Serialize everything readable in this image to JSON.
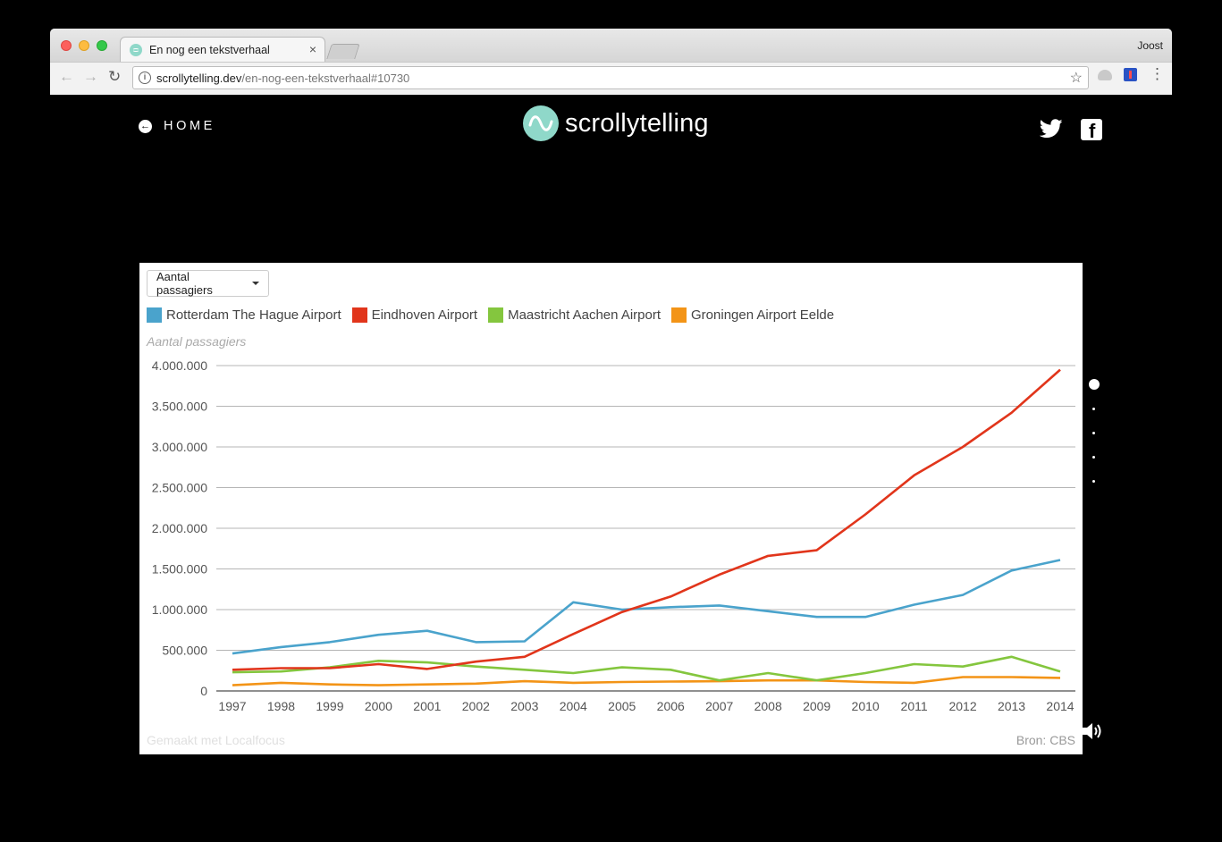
{
  "browser": {
    "tab_title": "En nog een tekstverhaal",
    "tab_close": "×",
    "user": "Joost",
    "url_host": "scrollytelling.dev",
    "url_path": "/en-nog-een-tekstverhaal#10730",
    "info_glyph": "i"
  },
  "header": {
    "home_label": "HOME",
    "logo_text": "scrollytelling"
  },
  "chart_panel": {
    "dropdown_label": "Aantal passagiers",
    "footer_left": "Gemaakt met Localfocus",
    "footer_right": "Bron: CBS"
  },
  "chart_data": {
    "type": "line",
    "ylabel": "Aantal passagiers",
    "ylim": [
      0,
      4000000
    ],
    "yticks": [
      0,
      500000,
      1000000,
      1500000,
      2000000,
      2500000,
      3000000,
      3500000,
      4000000
    ],
    "ytick_labels": [
      "0",
      "500.000",
      "1.000.000",
      "1.500.000",
      "2.000.000",
      "2.500.000",
      "3.000.000",
      "3.500.000",
      "4.000.000"
    ],
    "x": [
      "1997",
      "1998",
      "1999",
      "2000",
      "2001",
      "2002",
      "2003",
      "2004",
      "2005",
      "2006",
      "2007",
      "2008",
      "2009",
      "2010",
      "2011",
      "2012",
      "2013",
      "2014"
    ],
    "legend_position": "top-left",
    "grid": true,
    "series": [
      {
        "name": "Rotterdam The Hague Airport",
        "color": "#4aa3cc",
        "values": [
          460000,
          540000,
          600000,
          690000,
          740000,
          600000,
          610000,
          1090000,
          1000000,
          1030000,
          1050000,
          980000,
          910000,
          910000,
          1060000,
          1180000,
          1480000,
          1610000
        ]
      },
      {
        "name": "Eindhoven Airport",
        "color": "#e1351b",
        "values": [
          260000,
          280000,
          280000,
          330000,
          270000,
          360000,
          420000,
          700000,
          970000,
          1160000,
          1430000,
          1660000,
          1730000,
          2170000,
          2650000,
          3000000,
          3420000,
          3950000
        ]
      },
      {
        "name": "Maastricht Aachen Airport",
        "color": "#84c63e",
        "values": [
          230000,
          240000,
          290000,
          370000,
          350000,
          300000,
          260000,
          220000,
          290000,
          260000,
          130000,
          220000,
          130000,
          220000,
          330000,
          300000,
          420000,
          240000
        ]
      },
      {
        "name": "Groningen Airport Eelde",
        "color": "#f39417",
        "values": [
          70000,
          100000,
          80000,
          70000,
          80000,
          90000,
          120000,
          100000,
          110000,
          115000,
          120000,
          130000,
          130000,
          110000,
          100000,
          170000,
          170000,
          160000
        ]
      }
    ]
  },
  "side_nav": {
    "active_index": 0,
    "count": 5
  }
}
